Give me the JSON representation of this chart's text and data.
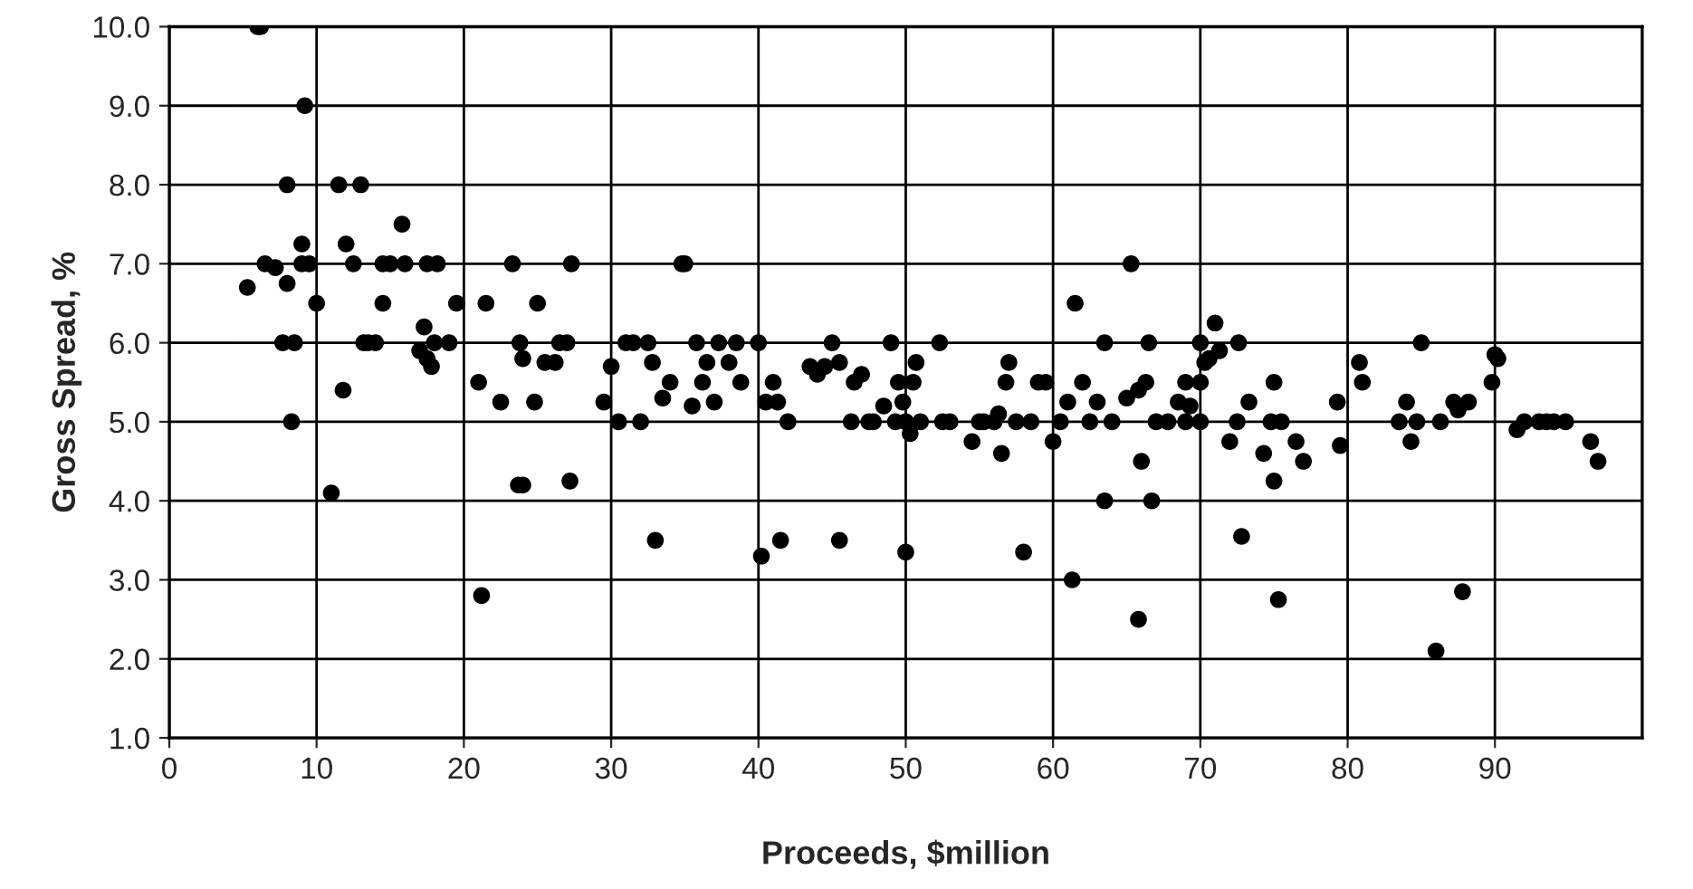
{
  "chart_data": {
    "type": "scatter",
    "xlabel": "Proceeds, $million",
    "ylabel": "Gross Spread, %",
    "xlim": [
      0,
      100
    ],
    "xticks": [
      0,
      10,
      20,
      30,
      40,
      50,
      60,
      70,
      80,
      90
    ],
    "ylim": [
      1.0,
      10.0
    ],
    "yticks": [
      {
        "value": 1,
        "label": "1.0"
      },
      {
        "value": 2,
        "label": "2.0"
      },
      {
        "value": 3,
        "label": "3.0"
      },
      {
        "value": 4,
        "label": "4.0"
      },
      {
        "value": 5,
        "label": "5.0"
      },
      {
        "value": 6,
        "label": "6.0"
      },
      {
        "value": 7,
        "label": "7.0"
      },
      {
        "value": 8,
        "label": "8.0"
      },
      {
        "value": 9,
        "label": "9.0"
      },
      {
        "value": 10,
        "label": "10.0"
      }
    ],
    "grid": true,
    "legend": false,
    "marker": "circle",
    "series": [
      {
        "color": "#000000",
        "x": [
          5.3,
          6,
          6.2,
          6.5,
          7.2,
          7.7,
          8,
          8,
          8.3,
          8.5,
          9,
          9.2,
          9,
          9.5,
          10,
          11,
          11.5,
          11.8,
          12,
          12.5,
          13,
          13.2,
          13.5,
          14,
          14.5,
          14.5,
          15,
          15.8,
          16,
          17,
          17.3,
          17.5,
          17.5,
          17.8,
          18,
          18.2,
          19,
          19.5,
          21,
          21.2,
          21.5,
          22.5,
          23.3,
          23.7,
          23.8,
          24,
          24,
          24.8,
          25,
          25.5,
          26.2,
          26.5,
          27,
          27.2,
          27.3,
          29.5,
          30,
          30.5,
          31,
          31.5,
          32,
          32.5,
          32.8,
          33,
          33.5,
          34,
          34.8,
          35,
          35.5,
          35.8,
          36.2,
          36.5,
          37,
          37.3,
          38,
          38.5,
          38.8,
          40,
          40.2,
          40.5,
          41,
          41.3,
          41.5,
          42,
          43.5,
          44,
          44.5,
          45,
          45.5,
          45.5,
          46.3,
          46.5,
          47,
          47.5,
          47.8,
          48.5,
          49,
          49.3,
          49.5,
          49.8,
          50,
          50,
          50.3,
          50.5,
          50.7,
          51,
          52.3,
          52.5,
          53,
          54.5,
          55,
          55.3,
          56,
          56.3,
          56.5,
          56.8,
          57,
          57.5,
          58,
          58.5,
          59,
          59.5,
          60,
          60.5,
          61,
          61.5,
          61.3,
          62,
          62.5,
          63,
          63.5,
          63.5,
          64,
          65,
          65.3,
          65.8,
          65.8,
          66,
          66.3,
          66.5,
          66.7,
          67,
          67.8,
          68.5,
          69,
          69,
          69.3,
          70,
          70,
          70,
          70.3,
          70.6,
          71,
          71.3,
          72,
          72.5,
          72.6,
          72.8,
          73.3,
          74.3,
          74.8,
          75,
          75,
          75.3,
          75.5,
          76.5,
          77,
          79.3,
          79.5,
          80.8,
          81,
          83.5,
          84,
          84.3,
          84.7,
          85,
          86,
          86.3,
          87.2,
          87.5,
          87.8,
          88.2,
          89.8,
          90,
          90.2,
          91.5,
          92,
          93,
          93.5,
          94,
          94.8,
          96.5,
          97
        ],
        "values": [
          6.7,
          10,
          10,
          7.0,
          6.95,
          6.0,
          8.0,
          6.75,
          5.0,
          6.0,
          7.25,
          9.0,
          7.0,
          7.0,
          6.5,
          4.1,
          8.0,
          5.4,
          7.25,
          7.0,
          8.0,
          6.0,
          6.0,
          6.0,
          6.5,
          7.0,
          7.0,
          7.5,
          7.0,
          5.9,
          6.2,
          5.8,
          7.0,
          5.7,
          6.0,
          7.0,
          6.0,
          6.5,
          5.5,
          2.8,
          6.5,
          5.25,
          7.0,
          4.2,
          6.0,
          5.8,
          4.2,
          5.25,
          6.5,
          5.75,
          5.75,
          6.0,
          6.0,
          4.25,
          7.0,
          5.25,
          5.7,
          5.0,
          6.0,
          6.0,
          5.0,
          6.0,
          5.75,
          3.5,
          5.3,
          5.5,
          7.0,
          7.0,
          5.2,
          6.0,
          5.5,
          5.75,
          5.25,
          6.0,
          5.75,
          6.0,
          5.5,
          6.0,
          3.3,
          5.25,
          5.5,
          5.25,
          3.5,
          5.0,
          5.7,
          5.6,
          5.7,
          6.0,
          3.5,
          5.75,
          5.0,
          5.5,
          5.6,
          5.0,
          5.0,
          5.2,
          6.0,
          5.0,
          5.5,
          5.25,
          3.35,
          5.0,
          4.85,
          5.5,
          5.75,
          5.0,
          6.0,
          5.0,
          5.0,
          4.75,
          5.0,
          5.0,
          5.0,
          5.1,
          4.6,
          5.5,
          5.75,
          5.0,
          3.35,
          5.0,
          5.5,
          5.5,
          4.75,
          5.0,
          5.25,
          6.5,
          3.0,
          5.5,
          5.0,
          5.25,
          4.0,
          6.0,
          5.0,
          5.3,
          7.0,
          2.5,
          5.4,
          4.5,
          5.5,
          6.0,
          4.0,
          5.0,
          5.0,
          5.25,
          5.5,
          5.0,
          5.2,
          6.0,
          5.5,
          5.0,
          5.75,
          5.8,
          6.25,
          5.9,
          4.75,
          5.0,
          6.0,
          3.55,
          5.25,
          4.6,
          5.0,
          5.5,
          4.25,
          2.75,
          5.0,
          4.75,
          4.5,
          5.25,
          4.7,
          5.75,
          5.5,
          5.0,
          5.25,
          4.75,
          5.0,
          6.0,
          2.1,
          5.0,
          5.25,
          5.15,
          2.85,
          5.25,
          5.5,
          5.85,
          5.8,
          4.9,
          5.0,
          5.0,
          5.0,
          5.0,
          5.0,
          4.75,
          4.5
        ]
      }
    ]
  }
}
